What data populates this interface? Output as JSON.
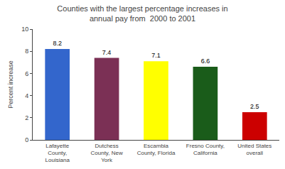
{
  "chart_data": {
    "type": "bar",
    "title": "Counties with the largest percentage increases in\nannual pay from  2000 to 2001",
    "ylabel": "Percent increase",
    "categories": [
      "Lafayette\nCounty,\nLouisiana",
      "Dutchess\nCounty, New\nYork",
      "Escambia\nCounty, Florida",
      "Fresno County,\nCalifornia",
      "United States\noverall"
    ],
    "values": [
      8.2,
      7.4,
      7.1,
      6.6,
      2.5
    ],
    "colors": [
      "#3366cc",
      "#7b3055",
      "#ffff00",
      "#1a5c1a",
      "#cc0000"
    ],
    "ylim": [
      0,
      10
    ],
    "yticks": [
      0,
      2,
      4,
      6,
      8,
      10
    ],
    "data_labels": true,
    "grid": false
  }
}
